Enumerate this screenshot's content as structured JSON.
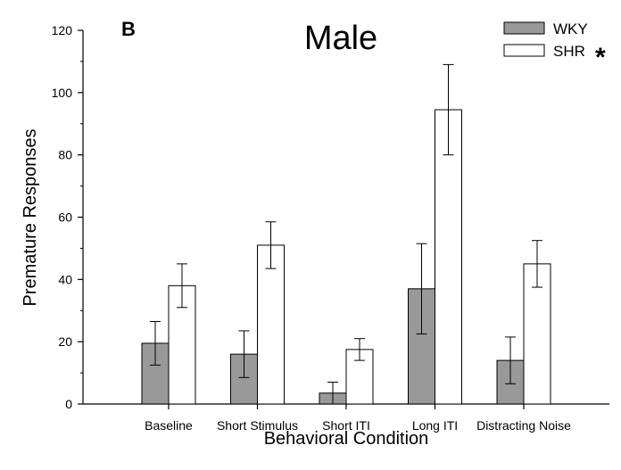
{
  "panel_label": "B",
  "chart_data": {
    "type": "bar",
    "title": "Male",
    "xlabel": "Behavioral Condition",
    "ylabel": "Premature Responses",
    "ylim": [
      0,
      120
    ],
    "yticks": [
      0,
      20,
      40,
      60,
      80,
      100,
      120
    ],
    "categories": [
      "Baseline",
      "Short Stimulus",
      "Short ITI",
      "Long ITI",
      "Distracting Noise"
    ],
    "series": [
      {
        "name": "WKY",
        "values": [
          19.5,
          16,
          3.5,
          37,
          14
        ],
        "errors": [
          7,
          7.5,
          3.5,
          14.5,
          7.5
        ],
        "fill": "#999999"
      },
      {
        "name": "SHR",
        "values": [
          38,
          51,
          17.5,
          94.5,
          45
        ],
        "errors": [
          7,
          7.5,
          3.5,
          14.5,
          7.5
        ],
        "fill": "#ffffff"
      }
    ],
    "significance_marker": "*",
    "legend_position": "top-right",
    "grid": false
  }
}
